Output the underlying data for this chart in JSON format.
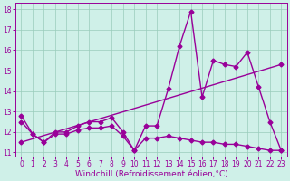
{
  "xlabel": "Windchill (Refroidissement éolien,°C)",
  "background_color": "#cff0e8",
  "line_color": "#990099",
  "xlim_min": -0.5,
  "xlim_max": 23.5,
  "ylim_min": 10.8,
  "ylim_max": 18.3,
  "yticks": [
    11,
    12,
    13,
    14,
    15,
    16,
    17,
    18
  ],
  "xticks": [
    0,
    1,
    2,
    3,
    4,
    5,
    6,
    7,
    8,
    9,
    10,
    11,
    12,
    13,
    14,
    15,
    16,
    17,
    18,
    19,
    20,
    21,
    22,
    23
  ],
  "actual_x": [
    0,
    1,
    2,
    3,
    4,
    5,
    6,
    7,
    8,
    9,
    10,
    11,
    12,
    13,
    14,
    15,
    16,
    17,
    18,
    19,
    20,
    21,
    22,
    23
  ],
  "actual_y": [
    12.8,
    11.9,
    11.5,
    12.0,
    12.0,
    12.3,
    12.5,
    12.5,
    12.7,
    12.0,
    11.1,
    12.3,
    12.3,
    14.1,
    16.2,
    17.9,
    13.7,
    15.5,
    15.3,
    15.2,
    15.9,
    14.2,
    12.5,
    11.1
  ],
  "lower_x": [
    0,
    1,
    2,
    3,
    4,
    5,
    6,
    7,
    8,
    9,
    10,
    11,
    12,
    13,
    14,
    15,
    16,
    17,
    18,
    19,
    20,
    21,
    22,
    23
  ],
  "lower_y": [
    12.5,
    11.9,
    11.5,
    11.9,
    11.9,
    12.1,
    12.2,
    12.2,
    12.3,
    11.8,
    11.1,
    11.7,
    11.7,
    11.8,
    11.7,
    11.6,
    11.5,
    11.5,
    11.4,
    11.4,
    11.3,
    11.2,
    11.1,
    11.1
  ],
  "trend_x": [
    0,
    23
  ],
  "trend_y": [
    11.5,
    15.3
  ],
  "grid_color": "#99ccbb",
  "marker": "D",
  "markersize": 2.5,
  "linewidth": 1.0,
  "xlabel_fontsize": 6.5,
  "tick_fontsize": 5.5,
  "figwidth": 3.2,
  "figheight": 2.0,
  "dpi": 100
}
